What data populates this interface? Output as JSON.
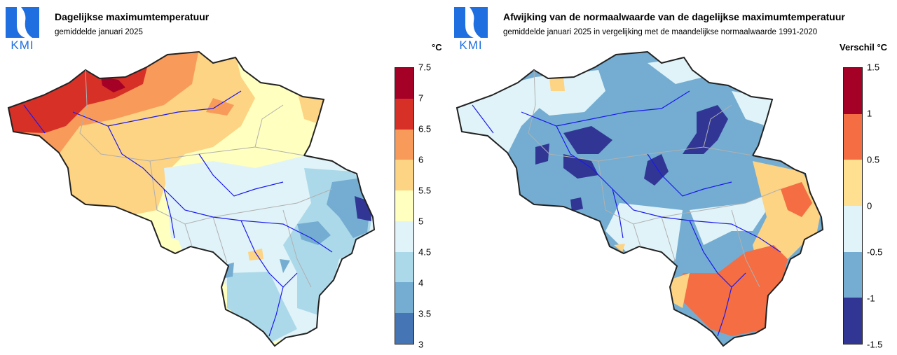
{
  "left": {
    "logo_text": "KMI",
    "title": "Dagelijkse maximumtemperatuur",
    "subtitle": "gemiddelde januari 2025",
    "unit": "°C",
    "legend": {
      "ticks": [
        "7.5",
        "7",
        "6.5",
        "6",
        "5.5",
        "5",
        "4.5",
        "4",
        "3.5",
        "3"
      ],
      "colors": [
        "#a50026",
        "#d73027",
        "#f46d43",
        "#fdae61",
        "#fee090",
        "#ffffbf",
        "#e0f3f8",
        "#abd9e9",
        "#74add1",
        "#4575b4",
        "#313695"
      ]
    }
  },
  "right": {
    "logo_text": "KMI",
    "title": "Afwijking van de normaalwaarde van de dagelijkse maximumtemperatuur",
    "subtitle": "gemiddelde januari 2025 in vergelijking met de maandelijkse normaalwaarde 1991-2020",
    "unit": "Verschil °C",
    "legend": {
      "ticks": [
        "1.5",
        "1",
        "0.5",
        "0",
        "-0.5",
        "-1",
        "-1.5"
      ],
      "colors": [
        "#a50026",
        "#f46d43",
        "#fee090",
        "#e0f3f8",
        "#74add1",
        "#313695"
      ]
    }
  }
}
